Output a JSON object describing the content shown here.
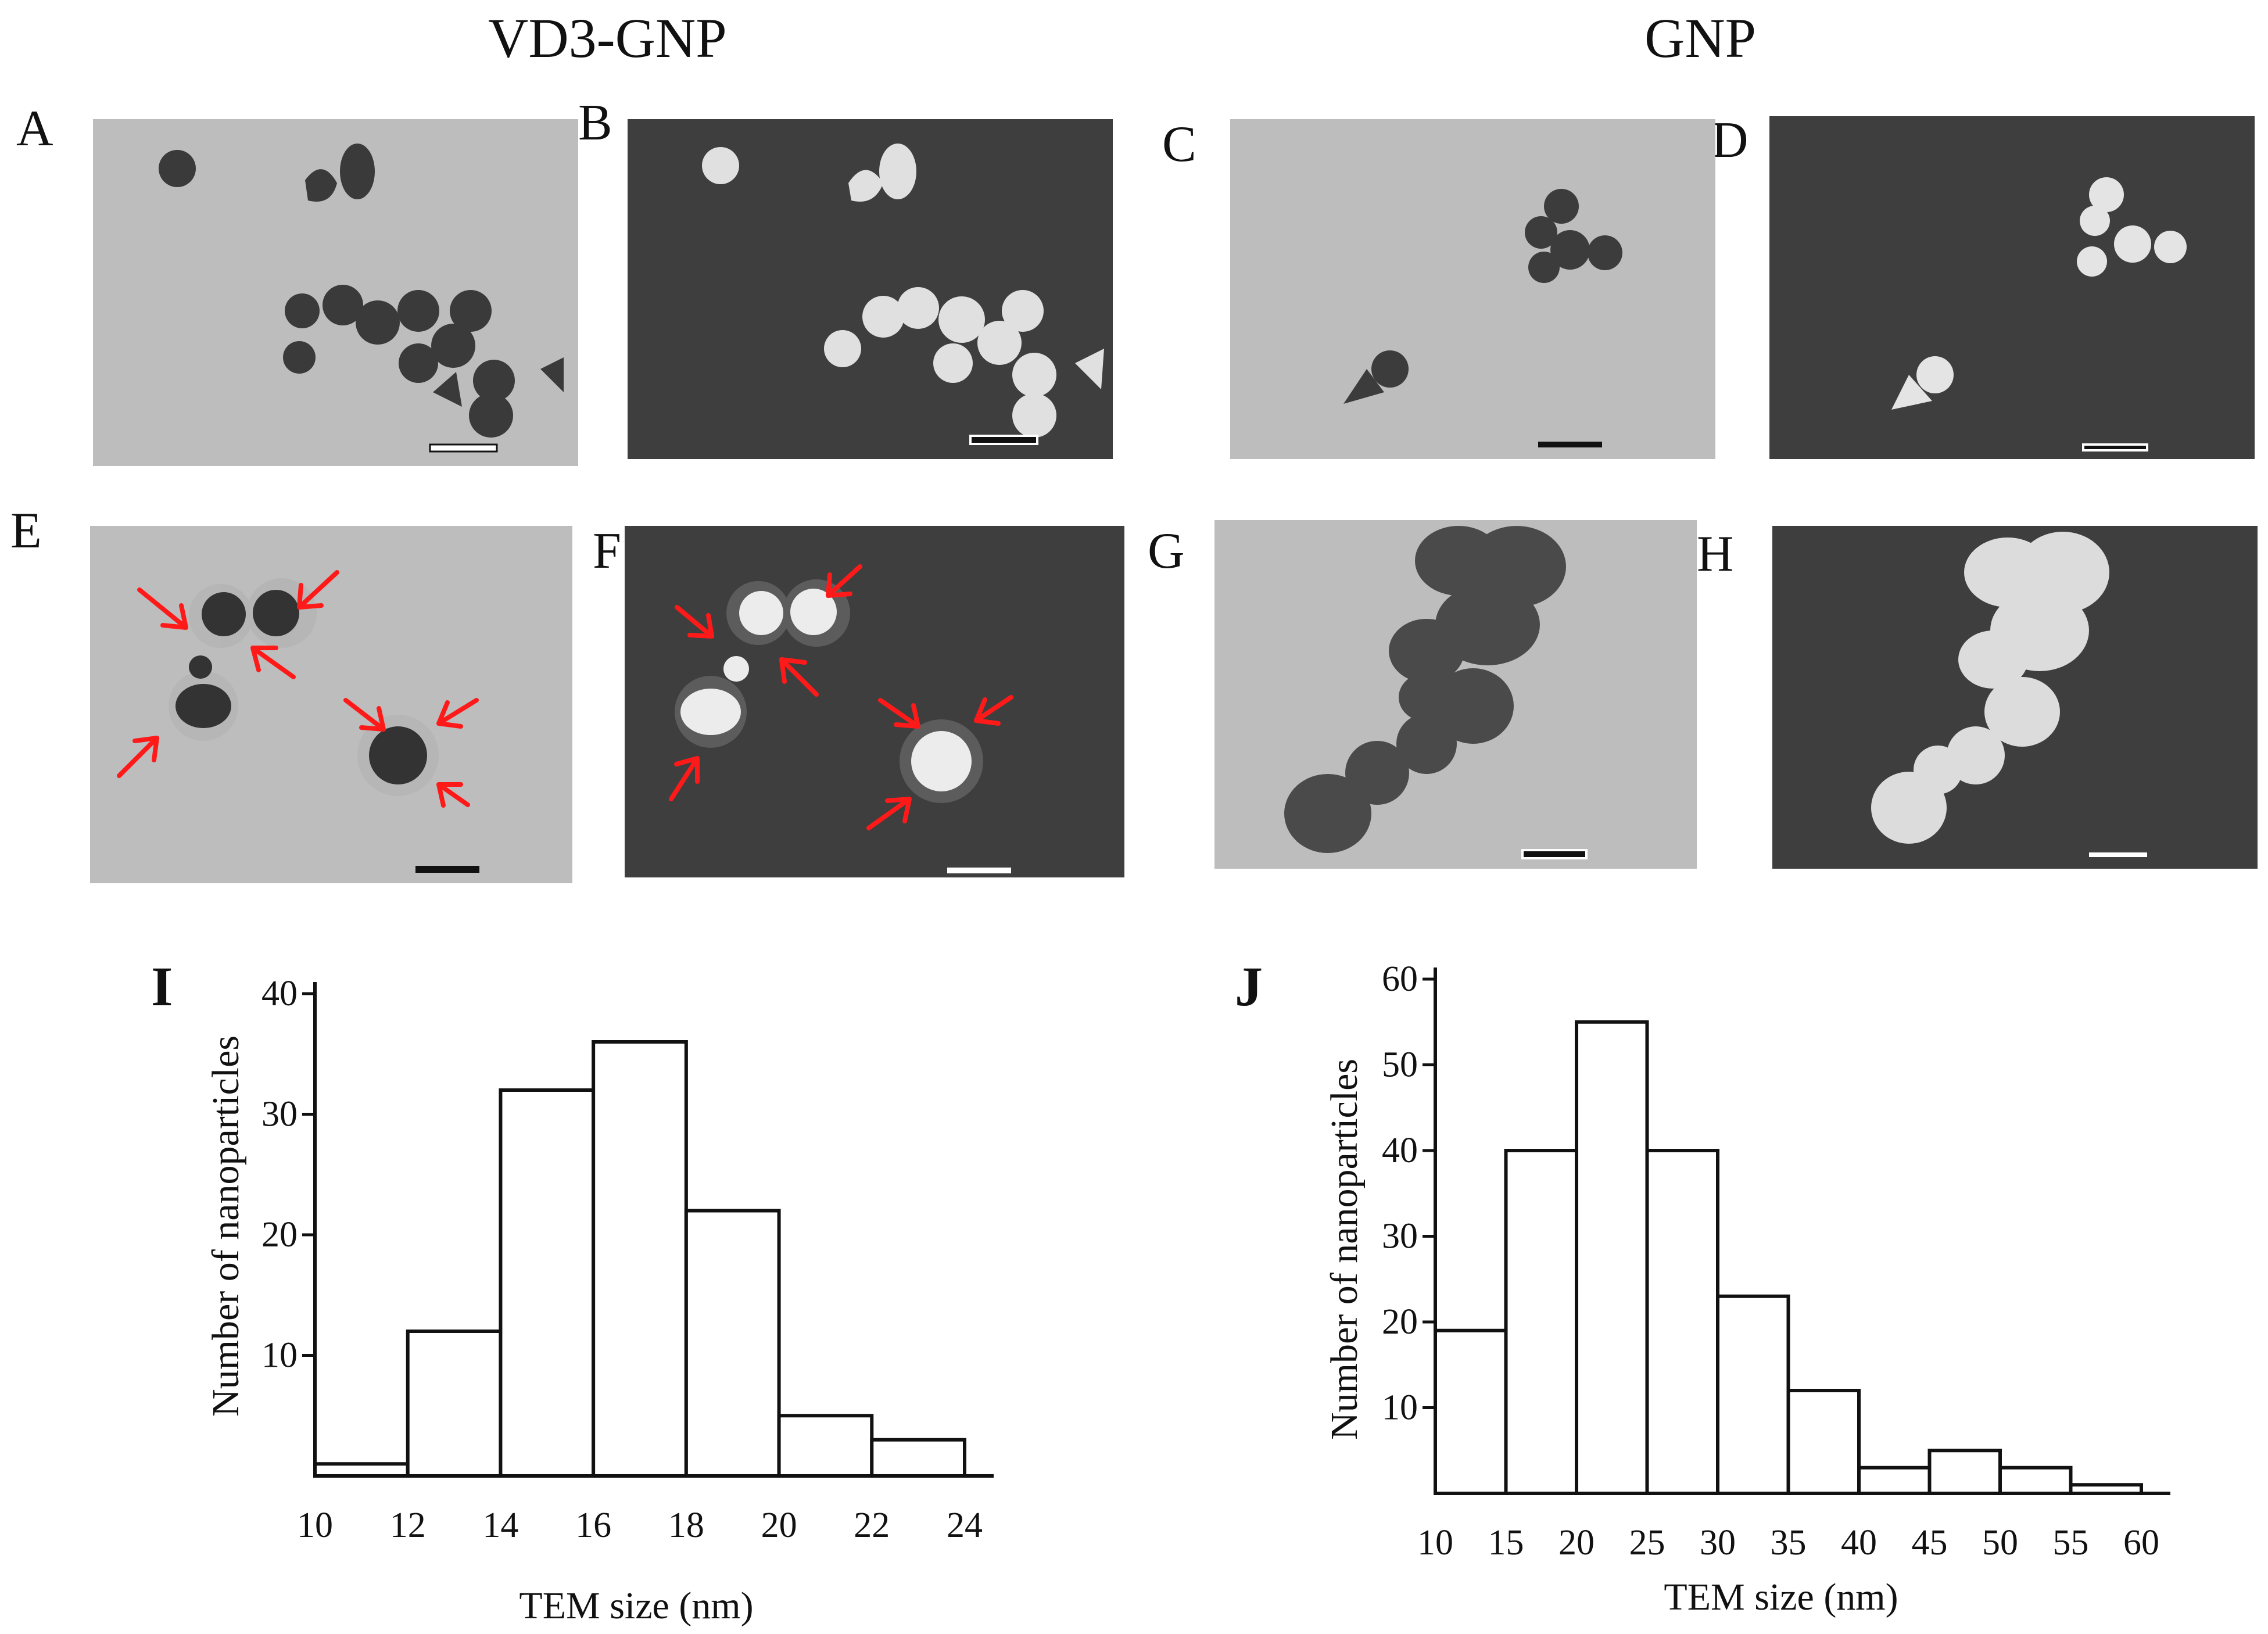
{
  "figure": {
    "header_left": "VD3-GNP",
    "header_right": "GNP",
    "panel_labels": [
      "A",
      "B",
      "C",
      "D",
      "E",
      "F",
      "G",
      "H"
    ]
  },
  "chart_data": [
    {
      "type": "bar",
      "letter": "I",
      "title": "",
      "xlabel": "TEM size (nm)",
      "ylabel": "Number of nanoparticles",
      "bin_edges": [
        10,
        12,
        14,
        16,
        18,
        20,
        22,
        24
      ],
      "values": [
        1,
        12,
        32,
        36,
        22,
        5,
        3
      ],
      "xticks": [
        "10",
        "12",
        "14",
        "16",
        "18",
        "20",
        "22",
        "24"
      ],
      "yticks": [
        "10",
        "20",
        "30",
        "40"
      ],
      "xlim": [
        10,
        24
      ],
      "ylim": [
        0,
        40
      ]
    },
    {
      "type": "bar",
      "letter": "J",
      "title": "",
      "xlabel": "TEM size (nm)",
      "ylabel": "Number of nanoparticles",
      "bin_edges": [
        10,
        15,
        20,
        25,
        30,
        35,
        40,
        45,
        50,
        55,
        60
      ],
      "values": [
        19,
        40,
        55,
        40,
        23,
        12,
        3,
        5,
        3,
        1
      ],
      "xticks": [
        "10",
        "15",
        "20",
        "25",
        "30",
        "35",
        "40",
        "45",
        "50",
        "55",
        "60"
      ],
      "yticks": [
        "10",
        "20",
        "30",
        "40",
        "50",
        "60"
      ],
      "xlim": [
        10,
        60
      ],
      "ylim": [
        0,
        60
      ]
    }
  ]
}
